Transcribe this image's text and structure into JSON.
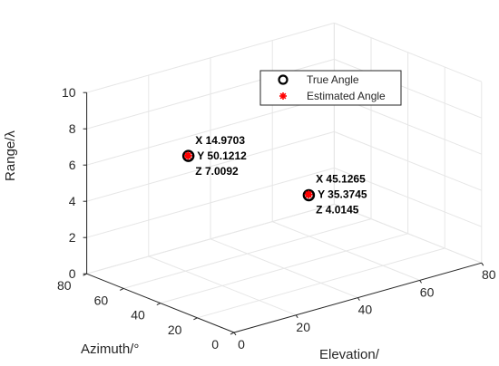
{
  "chart_data": {
    "type": "scatter",
    "projection": "3d",
    "xlabel": "Elevation/",
    "ylabel": "Azimuth/°",
    "zlabel": "Range/λ",
    "xlim": [
      0,
      80
    ],
    "ylim": [
      0,
      80
    ],
    "zlim": [
      0,
      10
    ],
    "x_ticks": [
      "0",
      "20",
      "40",
      "60",
      "80"
    ],
    "y_ticks": [
      "0",
      "20",
      "40",
      "60",
      "80"
    ],
    "z_ticks": [
      "0",
      "2",
      "4",
      "6",
      "8",
      "10"
    ],
    "grid": true,
    "legend_position": "top-right",
    "series": [
      {
        "name": "True Angle",
        "marker": "circle",
        "color": "#000000",
        "points": [
          {
            "x": 15,
            "y": 50,
            "z": 7
          },
          {
            "x": 45,
            "y": 35,
            "z": 4
          }
        ]
      },
      {
        "name": "Estimated Angle",
        "marker": "asterisk",
        "color": "#ff0000",
        "points": [
          {
            "x": 14.9703,
            "y": 50.1212,
            "z": 7.0092
          },
          {
            "x": 45.1265,
            "y": 35.3745,
            "z": 4.0145
          }
        ]
      }
    ],
    "annotations": [
      {
        "x_text": "X 14.9703",
        "y_text": "Y 50.1212",
        "z_text": "Z 7.0092"
      },
      {
        "x_text": "X 45.1265",
        "y_text": "Y 35.3745",
        "z_text": "Z 4.0145"
      }
    ]
  }
}
